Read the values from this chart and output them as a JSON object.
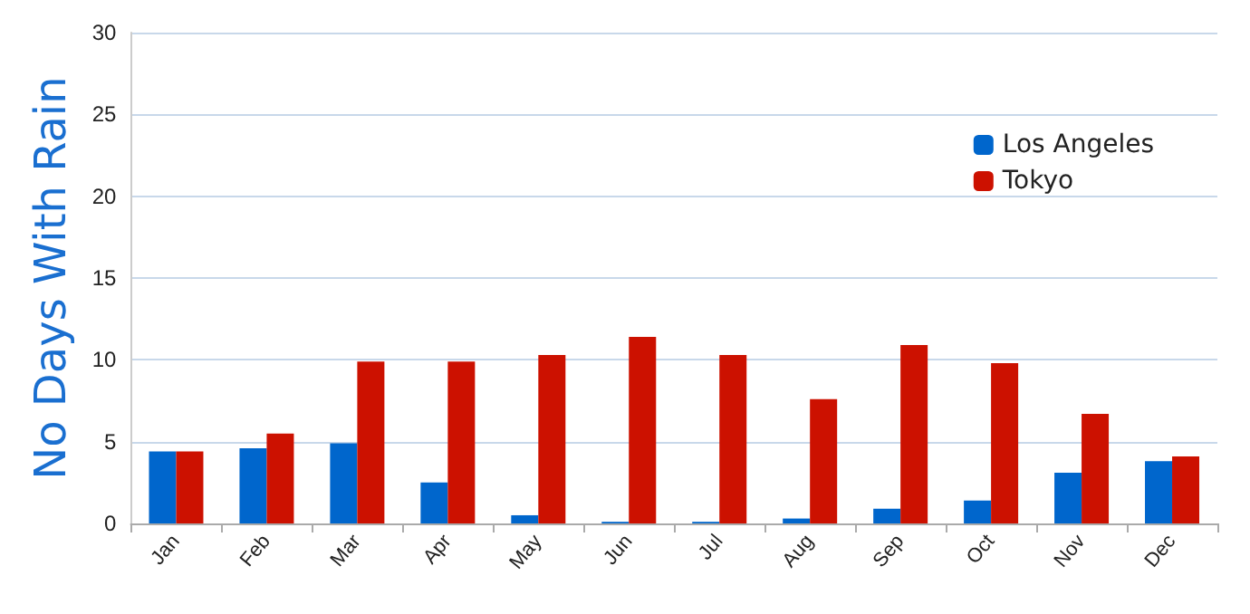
{
  "chart_data": {
    "type": "bar",
    "ylabel": "No Days With Rain",
    "categories": [
      "Jan",
      "Feb",
      "Mar",
      "Apr",
      "May",
      "Jun",
      "Jul",
      "Aug",
      "Sep",
      "Oct",
      "Nov",
      "Dec"
    ],
    "series": [
      {
        "name": "Los Angeles",
        "color": "#0066cc",
        "values": [
          4.4,
          4.6,
          4.9,
          2.5,
          0.5,
          0.1,
          0.1,
          0.3,
          0.9,
          1.4,
          3.1,
          3.8
        ]
      },
      {
        "name": "Tokyo",
        "color": "#cc1100",
        "values": [
          4.4,
          5.5,
          9.9,
          9.9,
          10.3,
          11.4,
          10.3,
          7.6,
          10.9,
          9.8,
          6.7,
          4.1
        ]
      }
    ],
    "ylim": [
      0,
      30
    ],
    "yticks": [
      0,
      5,
      10,
      15,
      20,
      25,
      30
    ],
    "grid": "y",
    "legend": "top right"
  }
}
